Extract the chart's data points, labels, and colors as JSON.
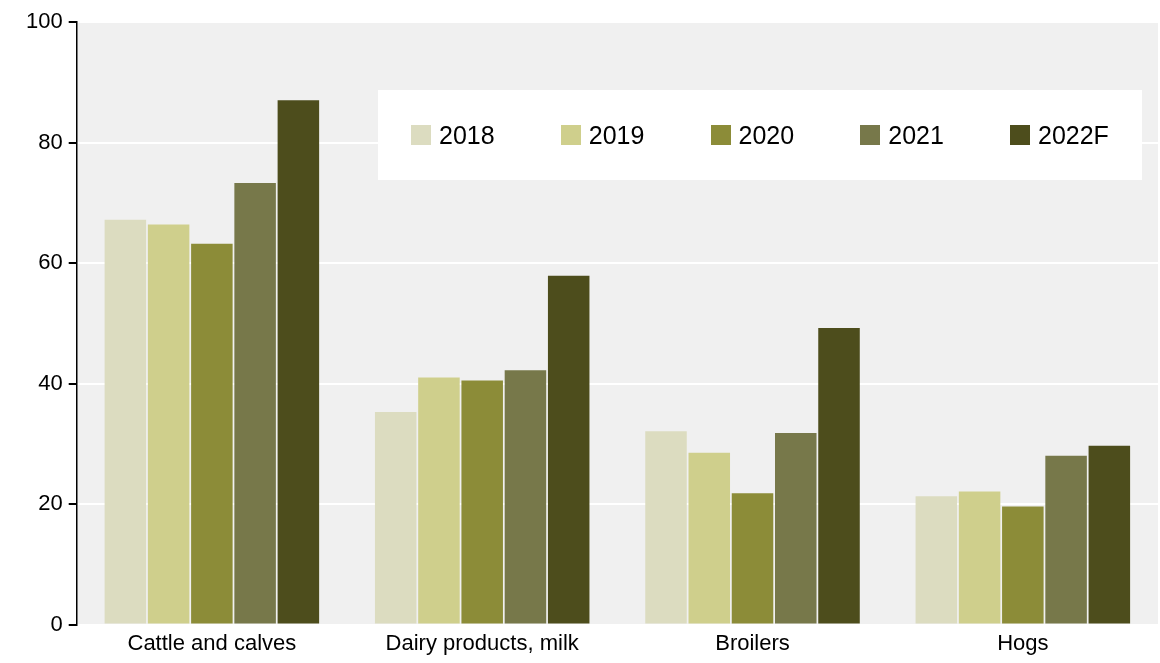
{
  "chart_data": {
    "type": "bar",
    "categories": [
      "Cattle and calves",
      "Dairy products, milk",
      "Broilers",
      "Hogs"
    ],
    "series": [
      {
        "name": "2018",
        "color": "#dcdcc0",
        "values": [
          67.2,
          35.3,
          32.1,
          21.3
        ]
      },
      {
        "name": "2019",
        "color": "#cfcf8c",
        "values": [
          66.4,
          41.0,
          28.5,
          22.1
        ]
      },
      {
        "name": "2020",
        "color": "#8c8c38",
        "values": [
          63.2,
          40.5,
          21.8,
          19.6
        ]
      },
      {
        "name": "2021",
        "color": "#77784a",
        "values": [
          73.3,
          42.2,
          31.8,
          28.0
        ]
      },
      {
        "name": "2022F",
        "color": "#4d4d1c",
        "values": [
          87.0,
          57.9,
          49.2,
          29.7
        ]
      }
    ],
    "ylim": [
      0,
      100
    ],
    "yticks": [
      0,
      20,
      40,
      60,
      80,
      100
    ],
    "grid": "y",
    "legend": "top right"
  }
}
